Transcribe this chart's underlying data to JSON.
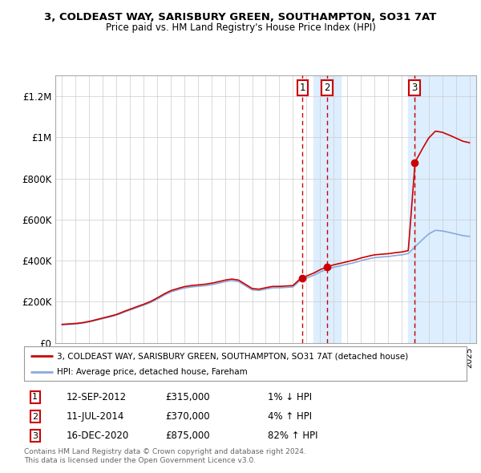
{
  "title_line1": "3, COLDEAST WAY, SARISBURY GREEN, SOUTHAMPTON, SO31 7AT",
  "title_line2": "Price paid vs. HM Land Registry's House Price Index (HPI)",
  "sale_color": "#cc0000",
  "hpi_color": "#88aadd",
  "background_color": "#ffffff",
  "plot_bg_color": "#ffffff",
  "shaded_region_color": "#ddeeff",
  "grid_color": "#cccccc",
  "ylim": [
    0,
    1300000
  ],
  "yticks": [
    0,
    200000,
    400000,
    600000,
    800000,
    1000000,
    1200000
  ],
  "ytick_labels": [
    "£0",
    "£200K",
    "£400K",
    "£600K",
    "£800K",
    "£1M",
    "£1.2M"
  ],
  "sale_events": [
    {
      "date_num": 2012.7,
      "price": 315000,
      "label": "1"
    },
    {
      "date_num": 2014.52,
      "price": 370000,
      "label": "2"
    },
    {
      "date_num": 2020.96,
      "price": 875000,
      "label": "3"
    }
  ],
  "legend_sale_label": "3, COLDEAST WAY, SARISBURY GREEN, SOUTHAMPTON, SO31 7AT (detached house)",
  "legend_hpi_label": "HPI: Average price, detached house, Fareham",
  "table_rows": [
    {
      "num": "1",
      "date": "12-SEP-2012",
      "price": "£315,000",
      "change": "1% ↓ HPI"
    },
    {
      "num": "2",
      "date": "11-JUL-2014",
      "price": "£370,000",
      "change": "4% ↑ HPI"
    },
    {
      "num": "3",
      "date": "16-DEC-2020",
      "price": "£875,000",
      "change": "82% ↑ HPI"
    }
  ],
  "footer_line1": "Contains HM Land Registry data © Crown copyright and database right 2024.",
  "footer_line2": "This data is licensed under the Open Government Licence v3.0.",
  "xmin": 1994.5,
  "xmax": 2025.5
}
